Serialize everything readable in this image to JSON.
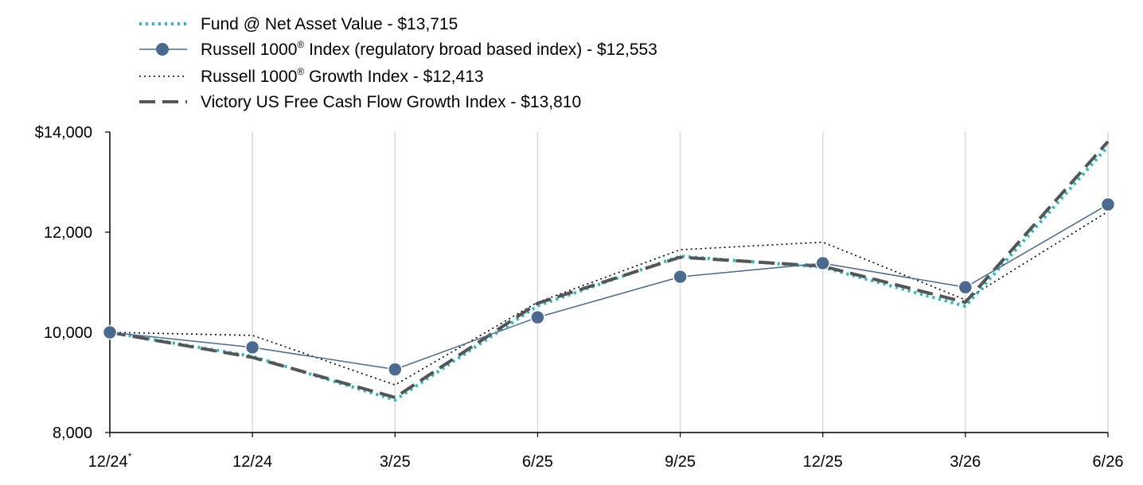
{
  "chart_data": {
    "type": "line",
    "title": "",
    "xlabel": "",
    "ylabel": "",
    "categories": [
      "12/24",
      "12/24",
      "3/25",
      "6/25",
      "9/25",
      "12/25",
      "3/26",
      "6/26"
    ],
    "category_footnote_mark": "*",
    "y_ticks": [
      "$14,000",
      "12,000",
      "10,000",
      "8,000"
    ],
    "y_tick_values": [
      14000,
      12000,
      10000,
      8000
    ],
    "ylim": [
      8000,
      14000
    ],
    "grid": "vertical",
    "legend_position": "top-left",
    "series": [
      {
        "name": "Fund @ Net Asset Value - $13,715",
        "style": "dotted",
        "color": "#1ebdc1",
        "values": [
          10000,
          9520,
          8650,
          10530,
          11520,
          11300,
          10520,
          13715
        ]
      },
      {
        "name_main": "Russell 1000",
        "name_sup": "®",
        "name_rest": " Index (regulatory broad based index) - $12,553",
        "style": "solid-marker",
        "color": "#4a6a90",
        "values": [
          10000,
          9700,
          9260,
          10300,
          11110,
          11380,
          10900,
          12553
        ]
      },
      {
        "name_main": "Russell 1000",
        "name_sup": "®",
        "name_rest": " Growth Index - $12,413",
        "style": "fine-dotted",
        "color": "#000000",
        "values": [
          10000,
          9940,
          8950,
          10600,
          11650,
          11800,
          10650,
          12413
        ]
      },
      {
        "name": "Victory US Free Cash Flow Growth Index - $13,810",
        "style": "dashed",
        "color": "#555555",
        "values": [
          10000,
          9500,
          8700,
          10580,
          11500,
          11320,
          10600,
          13810
        ]
      }
    ]
  }
}
